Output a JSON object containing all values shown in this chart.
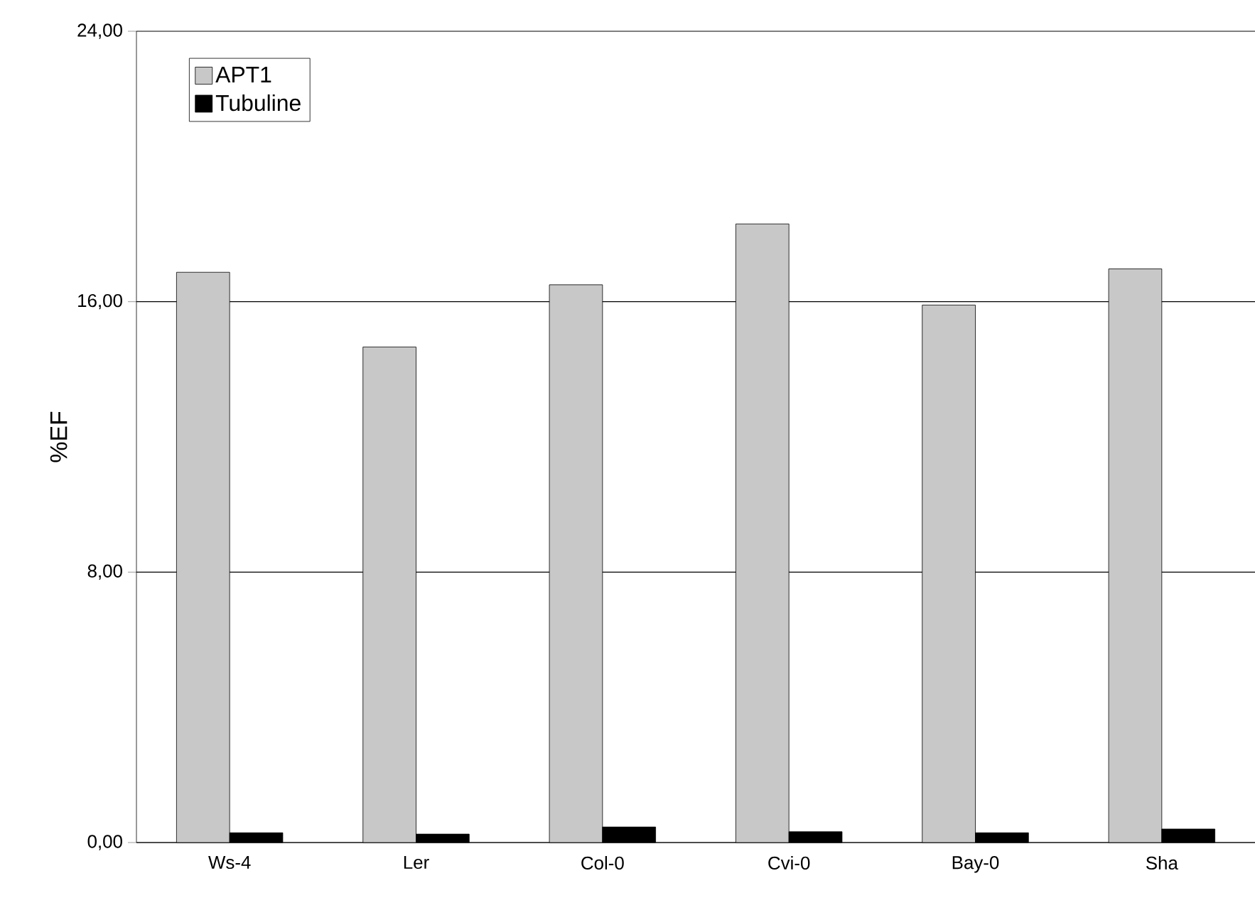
{
  "chart_data": {
    "type": "bar",
    "ylabel": "%EF",
    "categories": [
      "Ws-4",
      "Ler",
      "Col-0",
      "Cvi-0",
      "Bay-0",
      "Sha"
    ],
    "series": [
      {
        "name": "APT1",
        "color": "#c8c8c8",
        "values": [
          16.87,
          14.66,
          16.5,
          18.3,
          15.9,
          16.97
        ]
      },
      {
        "name": "Tubuline",
        "color": "#000000",
        "values": [
          0.29,
          0.25,
          0.46,
          0.32,
          0.29,
          0.4
        ]
      }
    ],
    "ylim": [
      0,
      24
    ],
    "yticks": [
      {
        "value": 0,
        "label": "0,00"
      },
      {
        "value": 8,
        "label": "8,00"
      },
      {
        "value": 16,
        "label": "16,00"
      },
      {
        "value": 24,
        "label": "24,00"
      }
    ],
    "grid": "y",
    "legend": "top left"
  }
}
